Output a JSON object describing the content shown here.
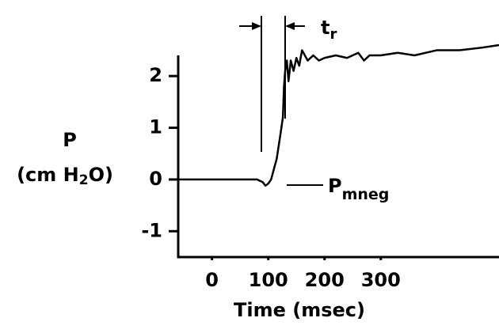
{
  "chart_data": {
    "type": "line",
    "y_label_top": "P",
    "y_label": {
      "main": "(cm H",
      "sub": "2",
      "end": "O)"
    },
    "x_label": "Time (msec)",
    "annotations": {
      "tr": {
        "main": "t",
        "sub": "r"
      },
      "pmneg": {
        "main": "P",
        "sub": "mneg"
      }
    },
    "x": [
      -60,
      0,
      80,
      90,
      95,
      100,
      105,
      115,
      122,
      126,
      128,
      130,
      133,
      136,
      140,
      145,
      150,
      155,
      160,
      170,
      180,
      190,
      200,
      220,
      240,
      260,
      270,
      280,
      300,
      330,
      360,
      400,
      440,
      480,
      510
    ],
    "series": [
      {
        "name": "P",
        "color": "#000000",
        "values": [
          0,
          0,
          0,
          -0.05,
          -0.12,
          -0.08,
          0,
          0.4,
          0.9,
          1.2,
          1.8,
          2.1,
          2.3,
          1.9,
          2.3,
          2.1,
          2.35,
          2.2,
          2.5,
          2.3,
          2.4,
          2.3,
          2.35,
          2.4,
          2.35,
          2.45,
          2.3,
          2.4,
          2.4,
          2.45,
          2.4,
          2.5,
          2.5,
          2.55,
          2.6
        ]
      }
    ],
    "xlim": [
      -60,
      510
    ],
    "ylim": [
      -1.5,
      2.4
    ],
    "xticks": [
      0,
      100,
      200,
      300
    ],
    "yticks": [
      -1,
      0,
      1,
      2
    ]
  }
}
